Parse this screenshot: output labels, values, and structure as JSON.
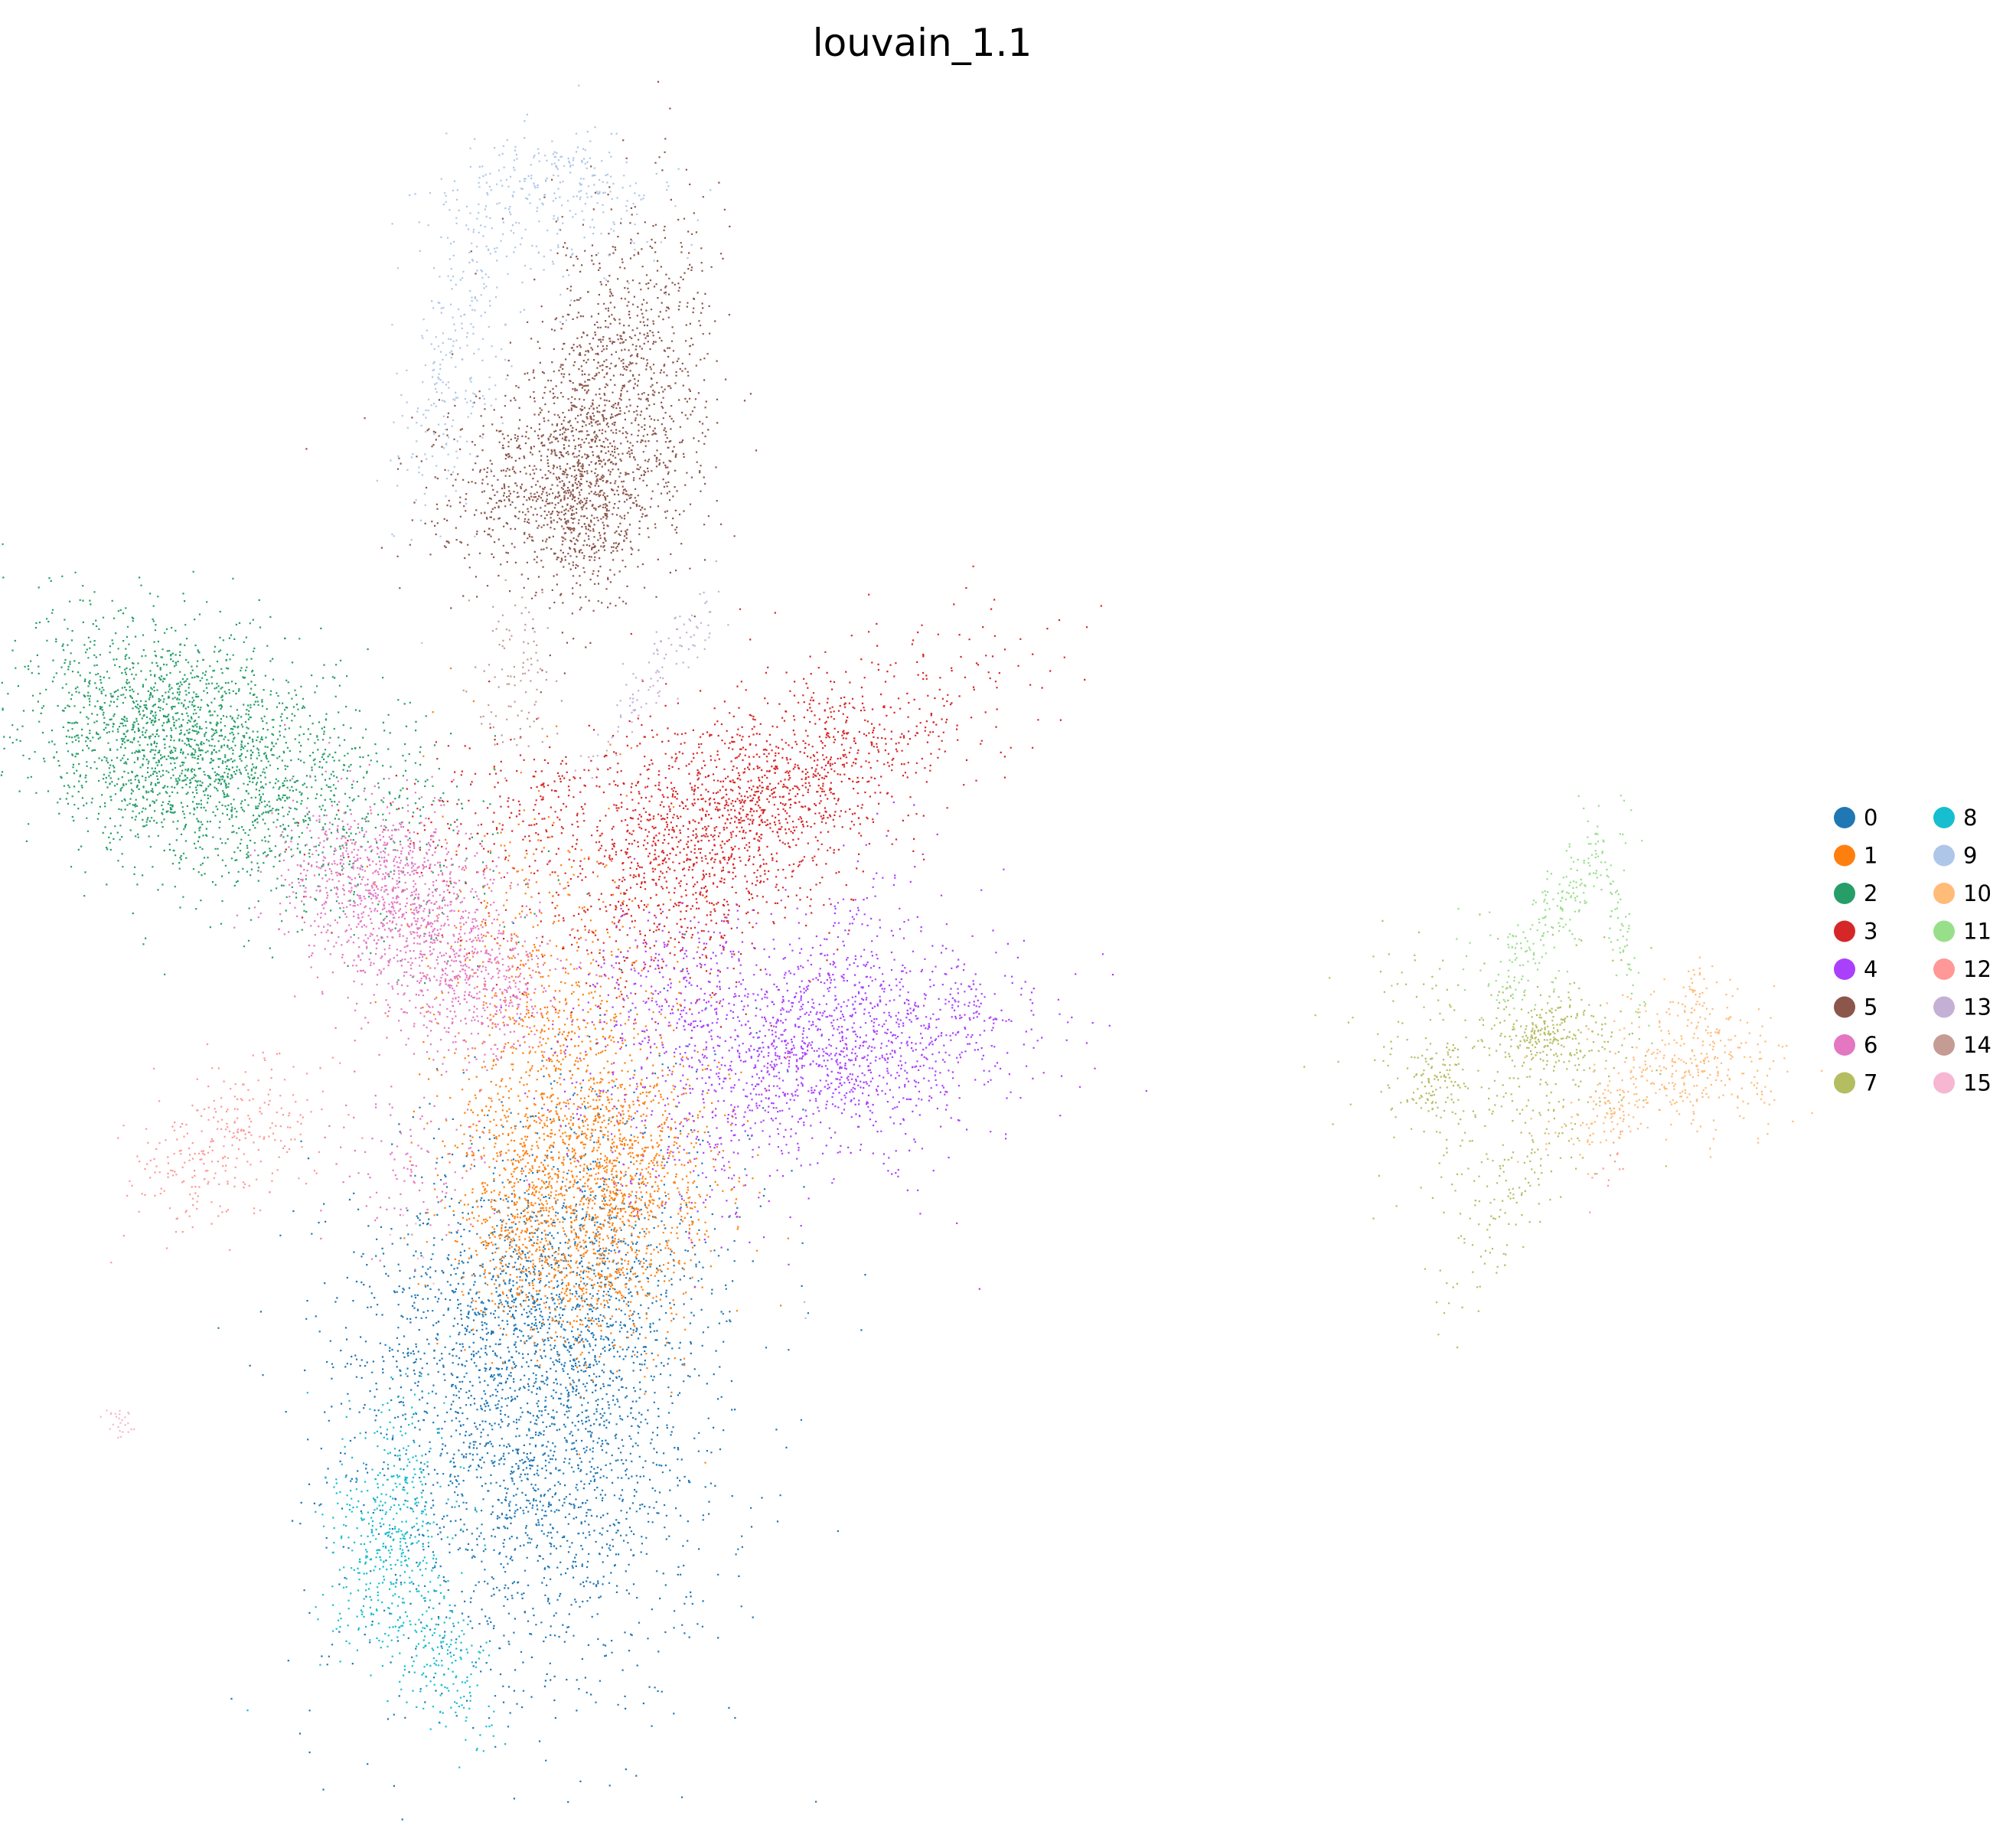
{
  "chart_data": {
    "type": "scatter",
    "title": "louvain_1.1",
    "xlabel": "",
    "ylabel": "",
    "axes_visible": false,
    "grid": false,
    "legend_placement": "right",
    "legend_columns": 2,
    "point_size": "very small",
    "categories": [
      "0",
      "1",
      "2",
      "3",
      "4",
      "5",
      "6",
      "7",
      "8",
      "9",
      "10",
      "11",
      "12",
      "13",
      "14",
      "15"
    ],
    "colors": [
      "#1f77b4",
      "#ff7f0e",
      "#279e68",
      "#d62728",
      "#aa40fc",
      "#8c564b",
      "#e377c2",
      "#b5bd61",
      "#17becf",
      "#aec7e8",
      "#ffbb78",
      "#98df8a",
      "#ff9896",
      "#c5b0d5",
      "#c49c94",
      "#f7b6d2"
    ],
    "approx_points_per_cluster": [
      15000,
      12000,
      11000,
      10000,
      9000,
      9500,
      7500,
      3200,
      3000,
      2600,
      2200,
      1300,
      1400,
      500,
      450,
      150
    ]
  }
}
